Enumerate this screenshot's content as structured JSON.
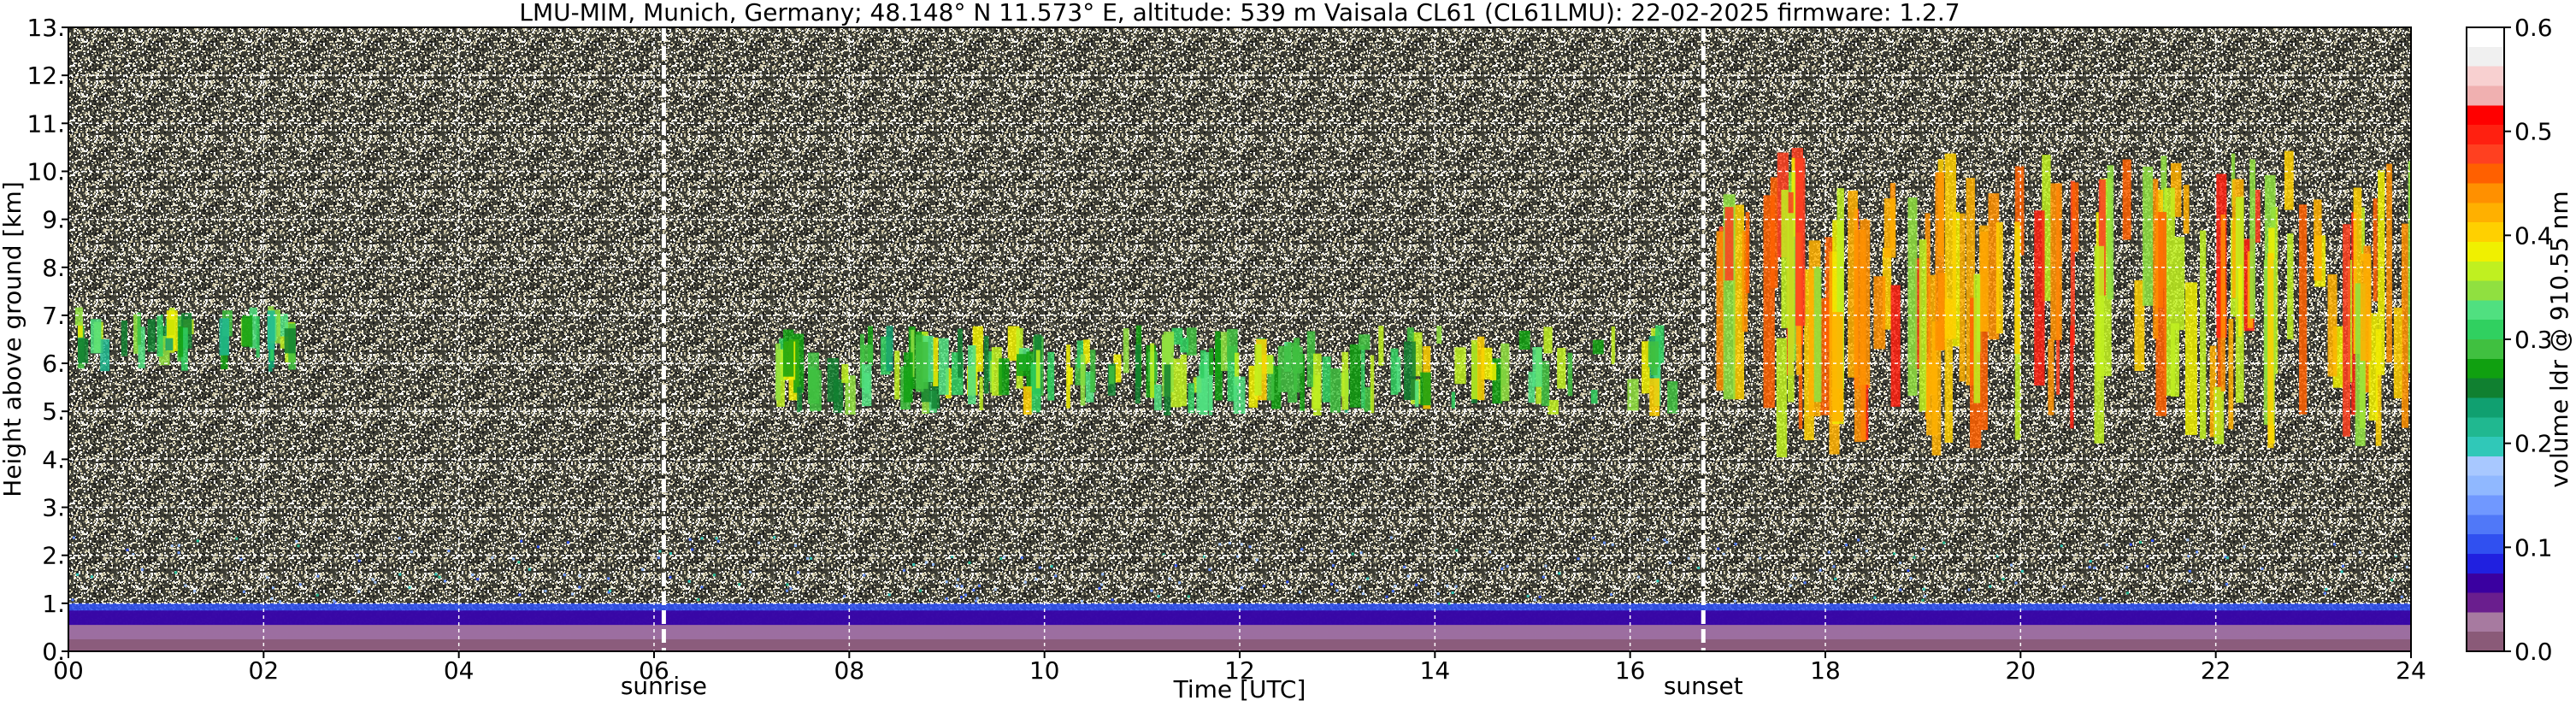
{
  "chart_data": {
    "type": "heatmap",
    "title": "LMU-MIM, Munich, Germany; 48.148° N 11.573° E, altitude: 539 m    Vaisala CL61 (CL61LMU): 22-02-2025    firmware: 1.2.7",
    "xlabel": "Time [UTC]",
    "ylabel": "Height above ground [km]",
    "xlim": [
      0,
      24
    ],
    "ylim": [
      0,
      13
    ],
    "x_tick_labels": [
      "00",
      "02",
      "04",
      "06",
      "08",
      "10",
      "12",
      "14",
      "16",
      "18",
      "20",
      "22",
      "24"
    ],
    "x_tick_values": [
      0,
      2,
      4,
      6,
      8,
      10,
      12,
      14,
      16,
      18,
      20,
      22,
      24
    ],
    "y_tick_labels": [
      "0.",
      "1.",
      "2.",
      "3.",
      "4.",
      "5.",
      "6.",
      "7.",
      "8.",
      "9.",
      "10.",
      "11.",
      "12.",
      "13."
    ],
    "y_tick_values": [
      0,
      1,
      2,
      3,
      4,
      5,
      6,
      7,
      8,
      9,
      10,
      11,
      12,
      13
    ],
    "grid": true,
    "annotations": [
      {
        "text": "sunrise",
        "x": 6.1
      },
      {
        "text": "sunset",
        "x": 16.75
      }
    ],
    "colorbar": {
      "label": "volume ldr @ 910.55 nm",
      "range": [
        0.0,
        0.6
      ],
      "tick_labels": [
        "0.0",
        "0.1",
        "0.2",
        "0.3",
        "0.4",
        "0.5",
        "0.6"
      ],
      "tick_values": [
        0.0,
        0.1,
        0.2,
        0.3,
        0.4,
        0.5,
        0.6
      ],
      "colors": [
        "#8a5a78",
        "#a77aa0",
        "#6a1e8e",
        "#3a00a0",
        "#2020e0",
        "#3050f0",
        "#5078f8",
        "#7098ff",
        "#90b8ff",
        "#a8c8ff",
        "#30c8b8",
        "#20b890",
        "#10a070",
        "#108030",
        "#10a010",
        "#40c040",
        "#30d060",
        "#50e080",
        "#90e040",
        "#c0f020",
        "#f0f000",
        "#ffd000",
        "#ffb000",
        "#ff9000",
        "#ff6000",
        "#ff4020",
        "#ff2010",
        "#ff0000",
        "#f0b0b0",
        "#f8d0d0",
        "#f0f0f0",
        "#ffffff"
      ]
    },
    "features": [
      {
        "name": "boundary-layer",
        "x": [
          0,
          24
        ],
        "y": [
          0,
          1.0
        ],
        "ldr": 0.0
      },
      {
        "name": "cloud-layer-early",
        "x": [
          0,
          2.3
        ],
        "y": [
          5.8,
          7.2
        ],
        "ldr": 0.3
      },
      {
        "name": "cloud-layer-mid",
        "x": [
          7.2,
          16.5
        ],
        "y": [
          4.9,
          6.8
        ],
        "ldr": 0.32
      },
      {
        "name": "cloud-layer-late",
        "x": [
          16.8,
          24
        ],
        "y": [
          4.0,
          10.5
        ],
        "ldr": 0.42
      }
    ]
  }
}
